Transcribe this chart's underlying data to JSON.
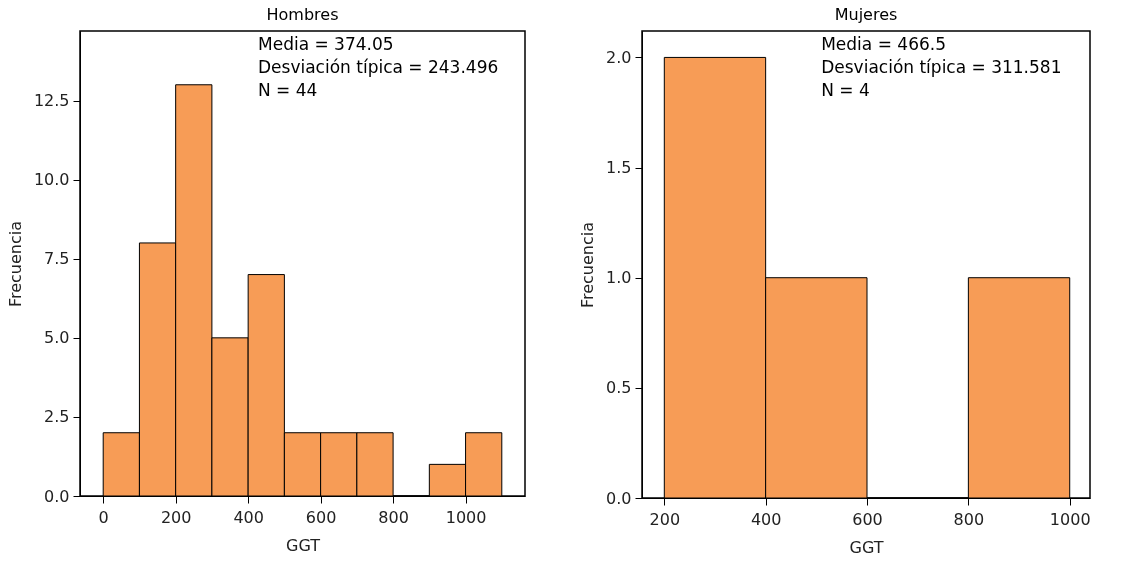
{
  "chart_data": [
    {
      "type": "histogram",
      "title": "Hombres",
      "xlabel": "GGT",
      "ylabel": "Frecuencia",
      "color": "#f79c56",
      "bins": [
        0,
        100,
        200,
        300,
        400,
        500,
        600,
        700,
        800,
        900,
        1000,
        1100
      ],
      "values": [
        2,
        8,
        13,
        5,
        7,
        2,
        2,
        2,
        0,
        1,
        2
      ],
      "xlim": [
        -64,
        1164
      ],
      "xticks": [
        0,
        200,
        400,
        600,
        800,
        1000
      ],
      "ylim": [
        0,
        14.7
      ],
      "yticks": [
        {
          "value": 0,
          "label": "0.0"
        },
        2.5,
        {
          "value": 5,
          "label": "5.0"
        },
        7.5,
        {
          "value": 10,
          "label": "10.0"
        },
        12.5
      ],
      "annotations": [
        "Media = 374.05",
        "Desviación típica = 243.496",
        "N = 44"
      ]
    },
    {
      "type": "histogram",
      "title": "Mujeres",
      "xlabel": "GGT",
      "ylabel": "Frecuencia",
      "color": "#f79c56",
      "bins": [
        200,
        400,
        600,
        800,
        1000
      ],
      "values": [
        2,
        1,
        0,
        1
      ],
      "xlim": [
        156,
        1040
      ],
      "xticks": [
        200,
        400,
        600,
        800,
        1000
      ],
      "ylim": [
        0,
        2.12
      ],
      "yticks": [
        {
          "value": 0,
          "label": "0.0"
        },
        0.5,
        {
          "value": 1,
          "label": "1.0"
        },
        1.5,
        {
          "value": 2,
          "label": "2.0"
        }
      ],
      "annotations": [
        "Media = 466.5",
        "Desviación típica = 311.581",
        "N = 4"
      ]
    }
  ]
}
